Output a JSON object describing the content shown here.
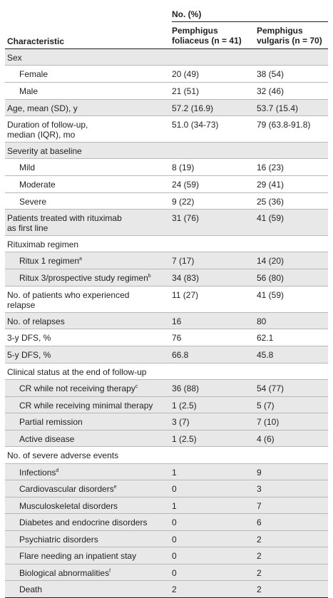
{
  "header": {
    "group_label": "No. (%)",
    "characteristic": "Characteristic",
    "col1": [
      "Pemphigus",
      "foliaceus (n = 41)"
    ],
    "col2": [
      "Pemphigus",
      "vulgaris (n = 70)"
    ]
  },
  "rows": [
    {
      "label": "Sex",
      "v1": "",
      "v2": "",
      "indent": false,
      "shaded": true,
      "h": 23
    },
    {
      "label": "Female",
      "v1": "20 (49)",
      "v2": "38 (54)",
      "indent": true,
      "shaded": false,
      "h": 24
    },
    {
      "label": "Male",
      "v1": "21 (51)",
      "v2": "32 (46)",
      "indent": true,
      "shaded": false,
      "h": 24
    },
    {
      "label": "Age, mean (SD), y",
      "v1": "57.2 (16.9)",
      "v2": "53.7 (15.4)",
      "indent": false,
      "shaded": true,
      "h": 23
    },
    {
      "label": "Duration of follow-up,",
      "label2": "median (IQR), mo",
      "v1": "51.0 (34-73)",
      "v2": "79 (63.8-91.8)",
      "indent": false,
      "shaded": false,
      "h": 37
    },
    {
      "label": "Severity at baseline",
      "v1": "",
      "v2": "",
      "indent": false,
      "shaded": true,
      "h": 23
    },
    {
      "label": "Mild",
      "v1": "8 (19)",
      "v2": "16 (23)",
      "indent": true,
      "shaded": false,
      "h": 24
    },
    {
      "label": "Moderate",
      "v1": "24 (59)",
      "v2": "29 (41)",
      "indent": true,
      "shaded": false,
      "h": 24
    },
    {
      "label": "Severe",
      "v1": "9 (22)",
      "v2": "25 (36)",
      "indent": true,
      "shaded": false,
      "h": 23
    },
    {
      "label": "Patients treated with rituximab",
      "label2": "as first line",
      "v1": "31 (76)",
      "v2": "41 (59)",
      "indent": false,
      "shaded": true,
      "h": 37
    },
    {
      "label": "Rituximab regimen",
      "v1": "",
      "v2": "",
      "indent": false,
      "shaded": false,
      "h": 23
    },
    {
      "label": "Ritux 1 regimen",
      "sup": "a",
      "v1": "7 (17)",
      "v2": "14 (20)",
      "indent": true,
      "shaded": true,
      "h": 24
    },
    {
      "label": "Ritux 3/prospective study regimen",
      "sup": "b",
      "v1": "34 (83)",
      "v2": "56 (80)",
      "indent": true,
      "shaded": true,
      "h": 24
    },
    {
      "label": "No. of patients who experienced",
      "label2": "relapse",
      "v1": "11 (27)",
      "v2": "41 (59)",
      "indent": false,
      "shaded": false,
      "h": 37
    },
    {
      "label": "No. of relapses",
      "v1": "16",
      "v2": "80",
      "indent": false,
      "shaded": true,
      "h": 23
    },
    {
      "label": "3-y DFS, %",
      "v1": "76",
      "v2": "62.1",
      "indent": false,
      "shaded": false,
      "h": 24
    },
    {
      "label": "5-y DFS, %",
      "v1": "66.8",
      "v2": "45.8",
      "indent": false,
      "shaded": true,
      "h": 24
    },
    {
      "label": "Clinical status at the end of follow-up",
      "v1": "",
      "v2": "",
      "indent": false,
      "shaded": false,
      "h": 23
    },
    {
      "label": "CR while not receiving therapy",
      "sup": "c",
      "v1": "36 (88)",
      "v2": "54 (77)",
      "indent": true,
      "shaded": true,
      "h": 24
    },
    {
      "label": "CR while receiving minimal therapy",
      "v1": "1 (2.5)",
      "v2": "5 (7)",
      "indent": true,
      "shaded": true,
      "h": 23
    },
    {
      "label": "Partial remission",
      "v1": "3 (7)",
      "v2": "7 (10)",
      "indent": true,
      "shaded": true,
      "h": 24
    },
    {
      "label": "Active disease",
      "v1": "1 (2.5)",
      "v2": "4 (6)",
      "indent": true,
      "shaded": true,
      "h": 23
    },
    {
      "label": "No. of severe adverse events",
      "v1": "",
      "v2": "",
      "indent": false,
      "shaded": false,
      "h": 24
    },
    {
      "label": "Infections",
      "sup": "d",
      "v1": "1",
      "v2": "9",
      "indent": true,
      "shaded": true,
      "h": 23
    },
    {
      "label": "Cardiovascular disorders",
      "sup": "e",
      "v1": "0",
      "v2": "3",
      "indent": true,
      "shaded": true,
      "h": 24
    },
    {
      "label": "Musculoskeletal disorders",
      "v1": "1",
      "v2": "7",
      "indent": true,
      "shaded": true,
      "h": 23
    },
    {
      "label": "Diabetes and endocrine disorders",
      "v1": "0",
      "v2": "6",
      "indent": true,
      "shaded": true,
      "h": 24
    },
    {
      "label": "Psychiatric disorders",
      "v1": "0",
      "v2": "2",
      "indent": true,
      "shaded": true,
      "h": 23
    },
    {
      "label": "Flare needing an inpatient stay",
      "v1": "0",
      "v2": "2",
      "indent": true,
      "shaded": true,
      "h": 24
    },
    {
      "label": "Biological abnormalities",
      "sup": "f",
      "v1": "0",
      "v2": "2",
      "indent": true,
      "shaded": true,
      "h": 23
    },
    {
      "label": "Death",
      "v1": "2",
      "v2": "2",
      "indent": true,
      "shaded": true,
      "h": 24
    }
  ]
}
